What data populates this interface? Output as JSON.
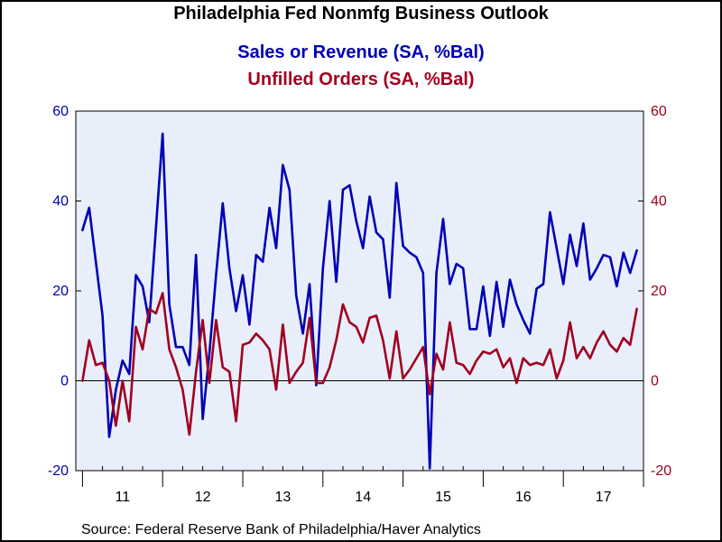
{
  "title": "Philadelphia Fed Nonmfg Business Outlook",
  "source": "Source:  Federal Reserve Bank of Philadelphia/Haver Analytics",
  "colors": {
    "plot_background": "#E8EEFA",
    "sales": "#0000B4",
    "unfilled": "#A00020",
    "zero_line": "#000000"
  },
  "chart_data": {
    "type": "line",
    "title": "Philadelphia Fed Nonmfg Business Outlook",
    "x_tick_labels": [
      "11",
      "12",
      "13",
      "14",
      "15",
      "16",
      "17"
    ],
    "x_start": "2010-12",
    "x_end": "2018-01",
    "y_left": {
      "min": -20,
      "max": 60,
      "ticks": [
        -20,
        0,
        20,
        40,
        60
      ]
    },
    "y_right": {
      "min": -20,
      "max": 60,
      "ticks": [
        -20,
        0,
        20,
        40,
        60
      ]
    },
    "grid": false,
    "legend": "top-center",
    "series": [
      {
        "name": "Sales or Revenue (SA, %Bal)",
        "axis": "left",
        "color": "#0000B4",
        "values": [
          33.5,
          38.5,
          26.5,
          14.5,
          -12.5,
          -2,
          4.5,
          1.5,
          23.5,
          21,
          13,
          34,
          55,
          17,
          7.5,
          7.5,
          3.5,
          28,
          -8.5,
          6,
          23.5,
          39.5,
          25,
          15.5,
          23.5,
          12.5,
          28,
          26.5,
          38.5,
          29.5,
          48,
          42.5,
          19,
          10.5,
          21.5,
          -1,
          25,
          40,
          22,
          42.5,
          43.5,
          35.5,
          29.5,
          41,
          33,
          31.5,
          18.5,
          44,
          30,
          28.5,
          27.5,
          24,
          -19.5,
          24,
          36,
          21.5,
          26,
          25,
          11.5,
          11.5,
          21,
          10,
          22,
          12,
          22.5,
          17,
          13.5,
          10.5,
          20.5,
          21.5,
          37.5,
          29.5,
          21.5,
          32.5,
          25.5,
          35,
          22.5,
          25,
          28,
          27.5,
          21,
          28.5,
          24,
          29
        ]
      },
      {
        "name": "Unfilled Orders (SA, %Bal)",
        "axis": "right",
        "color": "#A00020",
        "values": [
          0,
          9,
          3.5,
          4,
          0,
          -10,
          0,
          -9,
          12,
          7,
          16,
          15,
          19.5,
          7,
          3,
          -2,
          -12,
          2,
          13.5,
          -0.5,
          13.5,
          3,
          2,
          -9,
          8,
          8.5,
          10.5,
          9,
          7,
          -2,
          12.5,
          -0.5,
          2,
          4,
          14,
          -0.5,
          -0.5,
          3,
          9,
          17,
          13,
          12,
          8.5,
          14,
          14.5,
          9,
          0.5,
          11,
          0.5,
          2.5,
          5,
          7.5,
          -3,
          6,
          2.5,
          13,
          4,
          3.5,
          1.5,
          4.5,
          6.5,
          6,
          7,
          3,
          5,
          -0.5,
          5,
          3.5,
          4,
          3.5,
          7,
          0.5,
          4.5,
          13,
          5,
          7.5,
          5,
          8.5,
          11,
          8,
          6.5,
          9.5,
          8,
          16
        ]
      }
    ]
  }
}
